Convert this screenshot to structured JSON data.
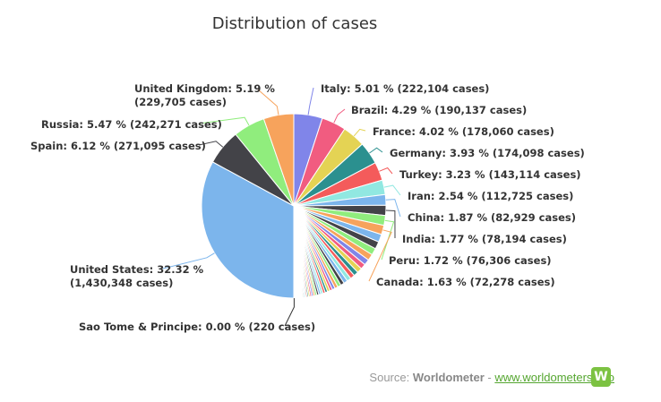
{
  "chart_data": {
    "type": "pie",
    "title": "Distribution of cases",
    "colors": {
      "palette": [
        "#7cb5ec",
        "#434348",
        "#90ed7d",
        "#f7a35c",
        "#8085e9",
        "#f15c80",
        "#e4d354",
        "#2b908f",
        "#f45b5b",
        "#91e8e1"
      ],
      "leader": "#999999"
    },
    "labeled_slices": [
      {
        "name": "United States",
        "text1": "United States: 32.32 %",
        "text2": "(1,430,348 cases)",
        "percent": 32.32,
        "color": "#7cb5ec"
      },
      {
        "name": "Spain",
        "text1": "Spain: 6.12 % (271,095 cases)",
        "text2": "",
        "percent": 6.12,
        "color": "#434348"
      },
      {
        "name": "Russia",
        "text1": "Russia: 5.47 % (242,271 cases)",
        "text2": "",
        "percent": 5.47,
        "color": "#90ed7d"
      },
      {
        "name": "United Kingdom",
        "text1": "United Kingdom: 5.19 %",
        "text2": "(229,705 cases)",
        "percent": 5.19,
        "color": "#f7a35c"
      },
      {
        "name": "Italy",
        "text1": "Italy: 5.01 % (222,104 cases)",
        "text2": "",
        "percent": 5.01,
        "color": "#8085e9"
      },
      {
        "name": "Brazil",
        "text1": "Brazil: 4.29 % (190,137 cases)",
        "text2": "",
        "percent": 4.29,
        "color": "#f15c80"
      },
      {
        "name": "France",
        "text1": "France: 4.02 % (178,060 cases)",
        "text2": "",
        "percent": 4.02,
        "color": "#e4d354"
      },
      {
        "name": "Germany",
        "text1": "Germany: 3.93 % (174,098 cases)",
        "text2": "",
        "percent": 3.93,
        "color": "#2b908f"
      },
      {
        "name": "Turkey",
        "text1": "Turkey: 3.23 % (143,114 cases)",
        "text2": "",
        "percent": 3.23,
        "color": "#f45b5b"
      },
      {
        "name": "Iran",
        "text1": "Iran: 2.54 % (112,725 cases)",
        "text2": "",
        "percent": 2.54,
        "color": "#91e8e1"
      },
      {
        "name": "China",
        "text1": "China: 1.87 % (82,929 cases)",
        "text2": "",
        "percent": 1.87,
        "color": "#7cb5ec"
      },
      {
        "name": "India",
        "text1": "India: 1.77 % (78,194 cases)",
        "text2": "",
        "percent": 1.77,
        "color": "#434348"
      },
      {
        "name": "Peru",
        "text1": "Peru: 1.72 % (76,306 cases)",
        "text2": "",
        "percent": 1.72,
        "color": "#90ed7d"
      },
      {
        "name": "Canada",
        "text1": "Canada: 1.63 % (72,278 cases)",
        "text2": "",
        "percent": 1.63,
        "color": "#f7a35c"
      },
      {
        "name": "Sao Tome & Principe",
        "text1": "Sao Tome & Principe: 0.00 % (220 cases)",
        "text2": "",
        "percent": 0.0,
        "color": "#8085e9"
      }
    ],
    "other_slices_percent": [
      1.5,
      1.4,
      1.3,
      1.2,
      1.1,
      1.0,
      0.95,
      0.9,
      0.85,
      0.8,
      0.75,
      0.7,
      0.65,
      0.6,
      0.55,
      0.5,
      0.48,
      0.46,
      0.44,
      0.42,
      0.4,
      0.38,
      0.36,
      0.34,
      0.32,
      0.3,
      0.28,
      0.26,
      0.24,
      0.22,
      0.2,
      0.19,
      0.18,
      0.17,
      0.16,
      0.15,
      0.14,
      0.13,
      0.12,
      0.11,
      0.1,
      0.09,
      0.08,
      0.07,
      0.06,
      0.05,
      0.04,
      0.03
    ]
  },
  "credit": {
    "prefix": "Source: ",
    "source": "Worldometer",
    "sep": " - ",
    "link": "www.worldometers.info",
    "logo": "W"
  }
}
